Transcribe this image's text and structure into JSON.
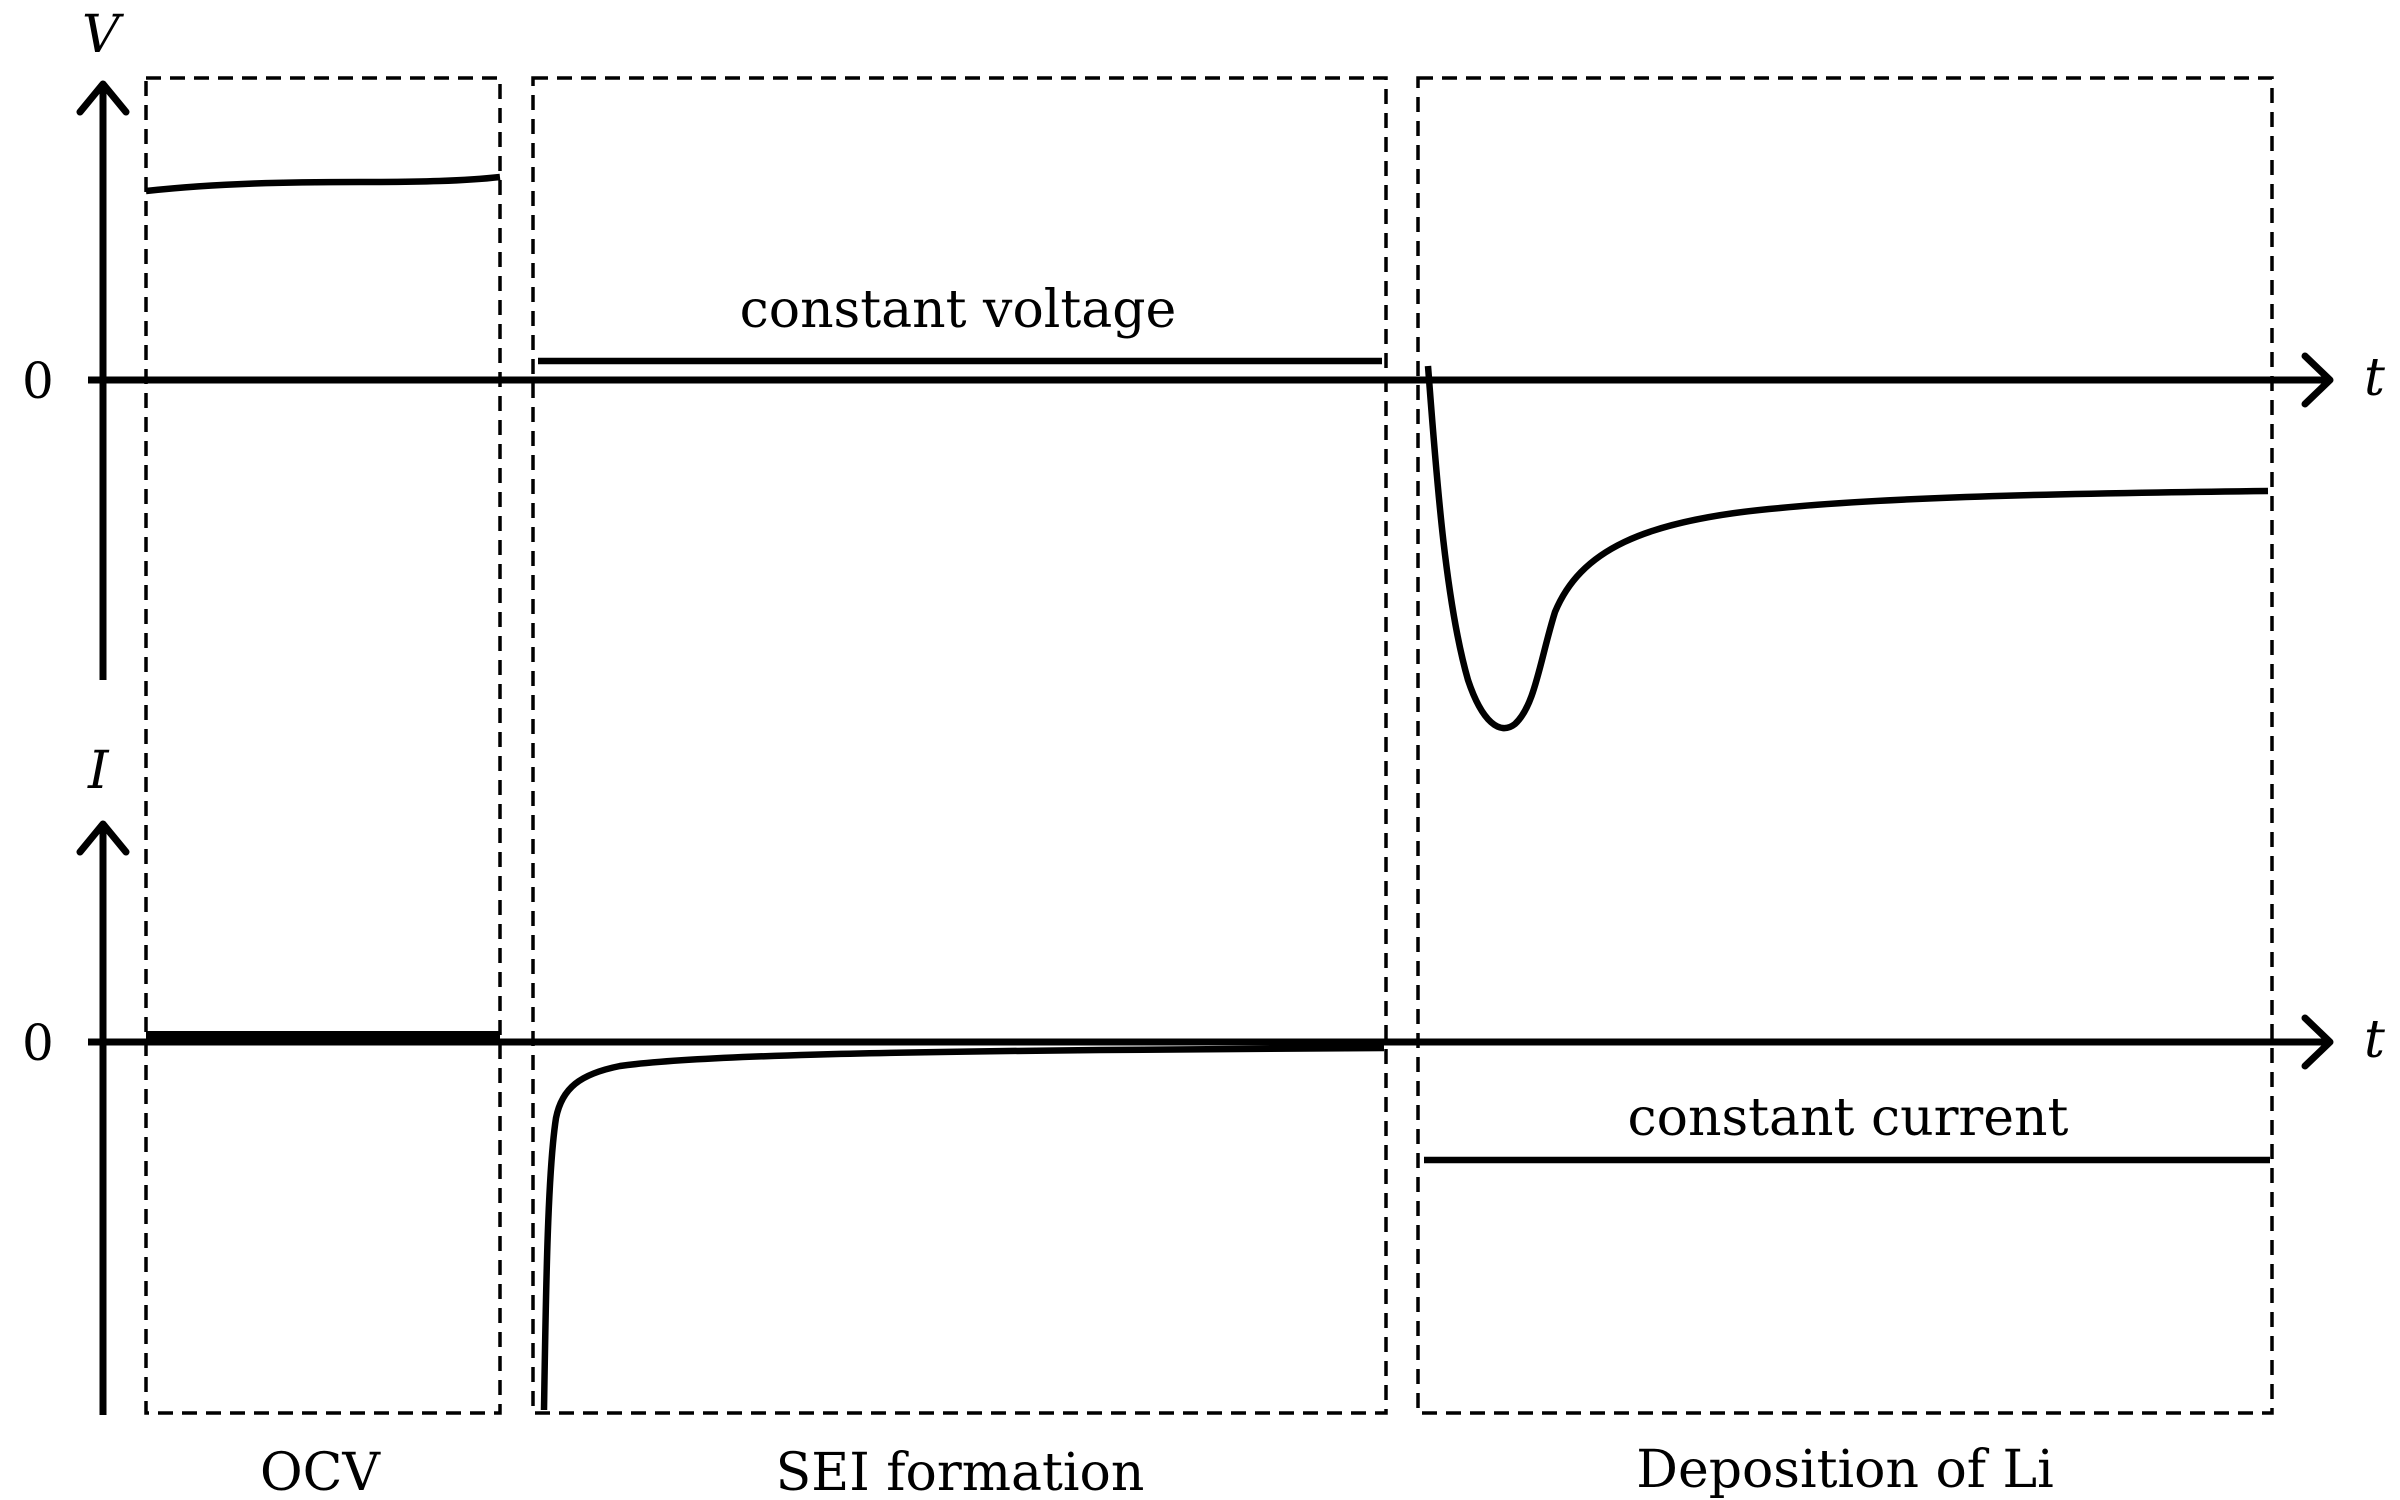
{
  "voltage_axis": {
    "label": "V",
    "zero": "0",
    "t_label": "t"
  },
  "current_axis": {
    "label": "I",
    "zero": "0",
    "t_label": "t"
  },
  "annotations": {
    "constant_voltage": "constant voltage",
    "constant_current": "constant current"
  },
  "phases": [
    {
      "label": "OCV"
    },
    {
      "label": "SEI formation"
    },
    {
      "label": "Deposition of Li"
    }
  ]
}
